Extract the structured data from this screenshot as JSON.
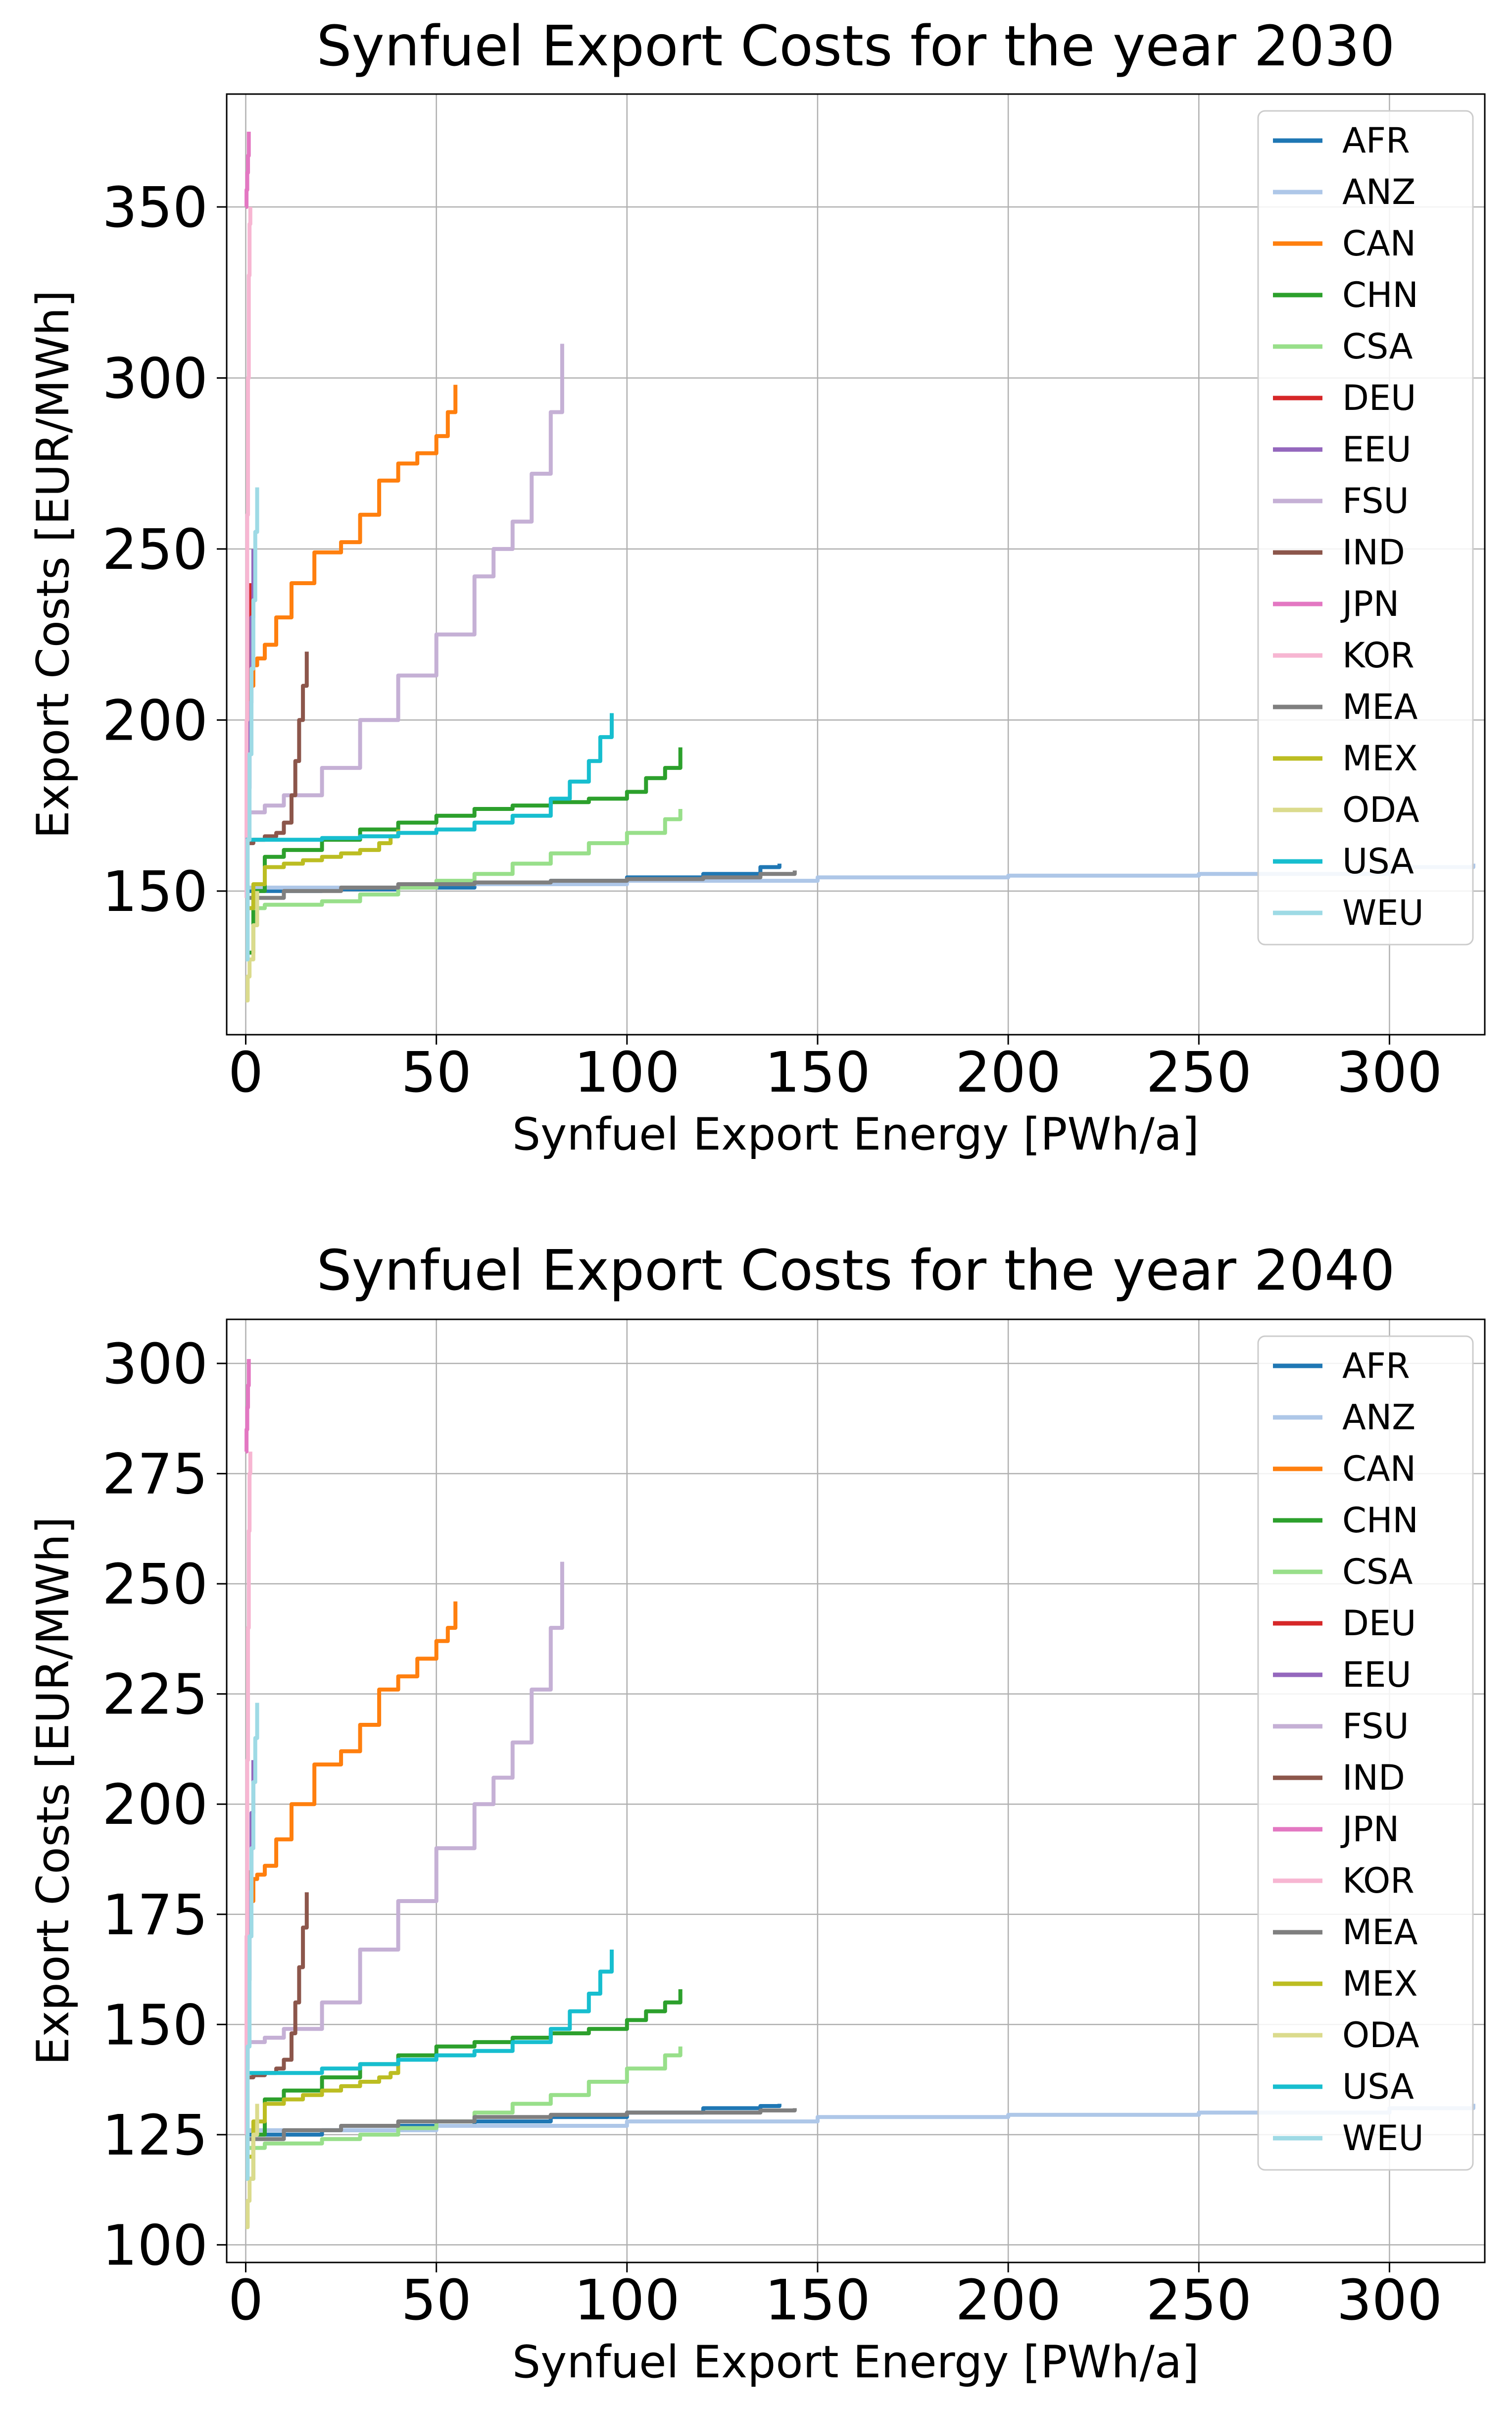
{
  "colors": {
    "AFR": "#1f77b4",
    "ANZ": "#aec7e8",
    "CAN": "#ff7f0e",
    "CHN": "#2ca02c",
    "CSA": "#98df8a",
    "DEU": "#d62728",
    "EEU": "#9467bd",
    "FSU": "#c5b0d5",
    "IND": "#8c564b",
    "JPN": "#e377c2",
    "KOR": "#f7b6d2",
    "MEA": "#7f7f7f",
    "MEX": "#bcbd22",
    "ODA": "#dbdb8d",
    "USA": "#17becf",
    "WEU": "#9edae5"
  },
  "chart_data": [
    {
      "type": "line",
      "title": "Synfuel Export Costs for the year 2030",
      "xlabel": "Synfuel Export Energy [PWh/a]",
      "ylabel": "Export Costs [EUR/MWh]",
      "xlim": [
        -5,
        325
      ],
      "ylim": [
        108,
        383
      ],
      "xticks": [
        0,
        50,
        100,
        150,
        200,
        250,
        300
      ],
      "yticks": [
        150,
        200,
        250,
        300,
        350
      ],
      "grid": true,
      "legend_position": "top-right",
      "series": [
        {
          "name": "AFR",
          "x": [
            0,
            5,
            20,
            40,
            60,
            80,
            100,
            120,
            135,
            140
          ],
          "y": [
            150,
            150,
            150.5,
            151,
            152,
            153,
            154,
            155,
            157,
            158
          ]
        },
        {
          "name": "ANZ",
          "x": [
            0,
            50,
            100,
            150,
            200,
            250,
            300,
            322
          ],
          "y": [
            151,
            152,
            153,
            154,
            154.5,
            155,
            157,
            158
          ]
        },
        {
          "name": "CAN",
          "x": [
            0,
            1,
            2,
            3,
            5,
            8,
            12,
            18,
            25,
            30,
            35,
            40,
            45,
            50,
            53,
            55
          ],
          "y": [
            205,
            210,
            216,
            218,
            222,
            230,
            240,
            249,
            252,
            260,
            270,
            275,
            278,
            283,
            290,
            298
          ]
        },
        {
          "name": "CHN",
          "x": [
            0,
            2,
            5,
            10,
            20,
            30,
            40,
            50,
            60,
            70,
            80,
            90,
            100,
            105,
            110,
            114
          ],
          "y": [
            132,
            150,
            160,
            162,
            165,
            168,
            170,
            172,
            174,
            175,
            176,
            177,
            179,
            183,
            186,
            192
          ]
        },
        {
          "name": "CSA",
          "x": [
            0,
            5,
            10,
            20,
            30,
            40,
            50,
            60,
            70,
            80,
            90,
            100,
            110,
            114
          ],
          "y": [
            145,
            146,
            146,
            147,
            149,
            151,
            153,
            155,
            158,
            161,
            164,
            167,
            171,
            174
          ]
        },
        {
          "name": "DEU",
          "x": [
            0,
            0.3,
            0.6,
            1
          ],
          "y": [
            150,
            185,
            215,
            240
          ]
        },
        {
          "name": "EEU",
          "x": [
            0,
            0.5,
            1,
            1.5,
            2
          ],
          "y": [
            165,
            180,
            205,
            230,
            250
          ]
        },
        {
          "name": "FSU",
          "x": [
            0,
            5,
            10,
            20,
            30,
            40,
            50,
            60,
            65,
            70,
            75,
            80,
            83
          ],
          "y": [
            173,
            175,
            178,
            186,
            200,
            213,
            225,
            242,
            250,
            258,
            272,
            290,
            310
          ]
        },
        {
          "name": "IND",
          "x": [
            0,
            2,
            5,
            8,
            10,
            12,
            13,
            14,
            15,
            16
          ],
          "y": [
            164,
            165,
            166,
            167,
            170,
            178,
            188,
            200,
            210,
            220
          ]
        },
        {
          "name": "JPN",
          "x": [
            0,
            0.2,
            0.4,
            0.6,
            0.8
          ],
          "y": [
            350,
            355,
            360,
            365,
            372
          ]
        },
        {
          "name": "KOR",
          "x": [
            0,
            0.2,
            0.4,
            0.6,
            0.8,
            1.0,
            1.2
          ],
          "y": [
            148,
            200,
            260,
            300,
            330,
            345,
            350
          ]
        },
        {
          "name": "MEA",
          "x": [
            0,
            10,
            25,
            40,
            60,
            80,
            100,
            120,
            135,
            144
          ],
          "y": [
            148,
            150,
            151,
            152,
            152.5,
            153,
            153.5,
            154,
            155,
            156
          ]
        },
        {
          "name": "MEX",
          "x": [
            0,
            2,
            5,
            10,
            15,
            20,
            25,
            30,
            35,
            38,
            40
          ],
          "y": [
            145,
            152,
            157,
            158,
            159,
            160,
            161,
            162,
            164,
            166,
            168
          ]
        },
        {
          "name": "ODA",
          "x": [
            0,
            0.5,
            1,
            2,
            3
          ],
          "y": [
            118,
            125,
            130,
            140,
            150
          ]
        },
        {
          "name": "USA",
          "x": [
            0,
            10,
            20,
            30,
            40,
            50,
            60,
            70,
            80,
            85,
            90,
            93,
            96
          ],
          "y": [
            165,
            165,
            165.5,
            166,
            167,
            168,
            170,
            172,
            177,
            182,
            188,
            195,
            202
          ]
        },
        {
          "name": "WEU",
          "x": [
            0,
            0.5,
            1,
            1.5,
            2,
            2.5,
            3
          ],
          "y": [
            130,
            165,
            190,
            215,
            235,
            255,
            268
          ]
        }
      ]
    },
    {
      "type": "line",
      "title": "Synfuel Export Costs for the year 2040",
      "xlabel": "Synfuel Export Energy [PWh/a]",
      "ylabel": "Export Costs [EUR/MWh]",
      "xlim": [
        -5,
        325
      ],
      "ylim": [
        96,
        310
      ],
      "xticks": [
        0,
        50,
        100,
        150,
        200,
        250,
        300
      ],
      "yticks": [
        100,
        125,
        150,
        175,
        200,
        225,
        250,
        275,
        300
      ],
      "grid": true,
      "legend_position": "top-right",
      "series": [
        {
          "name": "AFR",
          "x": [
            0,
            5,
            20,
            40,
            60,
            80,
            100,
            120,
            135,
            140
          ],
          "y": [
            125,
            125,
            126,
            127,
            128,
            129,
            130,
            131,
            131.5,
            132
          ]
        },
        {
          "name": "ANZ",
          "x": [
            0,
            50,
            100,
            150,
            200,
            250,
            300,
            322
          ],
          "y": [
            126,
            127,
            128,
            129,
            129.5,
            130,
            131,
            132
          ]
        },
        {
          "name": "CAN",
          "x": [
            0,
            1,
            2,
            3,
            5,
            8,
            12,
            18,
            25,
            30,
            35,
            40,
            45,
            50,
            53,
            55
          ],
          "y": [
            174,
            178,
            183,
            184,
            186,
            192,
            200,
            209,
            212,
            218,
            226,
            229,
            233,
            237,
            240,
            246
          ]
        },
        {
          "name": "CHN",
          "x": [
            0,
            2,
            5,
            10,
            20,
            30,
            40,
            50,
            60,
            70,
            80,
            90,
            100,
            105,
            110,
            114
          ],
          "y": [
            115,
            125,
            133,
            135,
            138,
            141,
            143,
            145,
            146,
            147,
            148,
            149,
            151,
            153,
            155,
            158
          ]
        },
        {
          "name": "CSA",
          "x": [
            0,
            5,
            10,
            20,
            30,
            40,
            50,
            60,
            70,
            80,
            90,
            100,
            110,
            114
          ],
          "y": [
            122,
            123,
            123,
            124,
            125,
            126.5,
            128,
            130,
            132,
            134,
            137,
            140,
            143,
            145
          ]
        },
        {
          "name": "DEU",
          "x": [
            0,
            0.3,
            0.6,
            1
          ],
          "y": [
            125,
            150,
            170,
            185
          ]
        },
        {
          "name": "EEU",
          "x": [
            0,
            0.5,
            1,
            1.5,
            2
          ],
          "y": [
            140,
            160,
            180,
            198,
            210
          ]
        },
        {
          "name": "FSU",
          "x": [
            0,
            5,
            10,
            20,
            30,
            40,
            50,
            60,
            65,
            70,
            75,
            80,
            83
          ],
          "y": [
            146,
            147,
            149,
            155,
            167,
            178,
            190,
            200,
            206,
            214,
            226,
            240,
            255
          ]
        },
        {
          "name": "IND",
          "x": [
            0,
            2,
            5,
            8,
            10,
            12,
            13,
            14,
            15,
            16
          ],
          "y": [
            138,
            138.5,
            139,
            140,
            142,
            148,
            155,
            163,
            172,
            180
          ]
        },
        {
          "name": "JPN",
          "x": [
            0,
            0.2,
            0.4,
            0.6,
            0.8
          ],
          "y": [
            280,
            285,
            290,
            295,
            301
          ]
        },
        {
          "name": "KOR",
          "x": [
            0,
            0.2,
            0.4,
            0.6,
            0.8,
            1.0,
            1.2
          ],
          "y": [
            125,
            170,
            210,
            240,
            262,
            275,
            280
          ]
        },
        {
          "name": "MEA",
          "x": [
            0,
            10,
            25,
            40,
            60,
            80,
            100,
            120,
            135,
            144
          ],
          "y": [
            124,
            126,
            127,
            128,
            129,
            129.5,
            130,
            130,
            130.5,
            131
          ]
        },
        {
          "name": "MEX",
          "x": [
            0,
            2,
            5,
            10,
            15,
            20,
            25,
            30,
            35,
            38,
            40
          ],
          "y": [
            120,
            128,
            132,
            133,
            134,
            135,
            136,
            137,
            138,
            139,
            141
          ]
        },
        {
          "name": "ODA",
          "x": [
            0,
            0.5,
            1,
            2,
            3
          ],
          "y": [
            104,
            110,
            115,
            125,
            132
          ]
        },
        {
          "name": "USA",
          "x": [
            0,
            10,
            20,
            30,
            40,
            50,
            60,
            70,
            80,
            85,
            90,
            93,
            96
          ],
          "y": [
            139,
            139,
            140,
            141,
            142,
            143,
            144,
            146,
            149,
            153,
            157,
            162,
            167
          ]
        },
        {
          "name": "WEU",
          "x": [
            0,
            0.5,
            1,
            1.5,
            2,
            2.5,
            3
          ],
          "y": [
            115,
            145,
            170,
            190,
            205,
            215,
            223
          ]
        }
      ]
    }
  ]
}
